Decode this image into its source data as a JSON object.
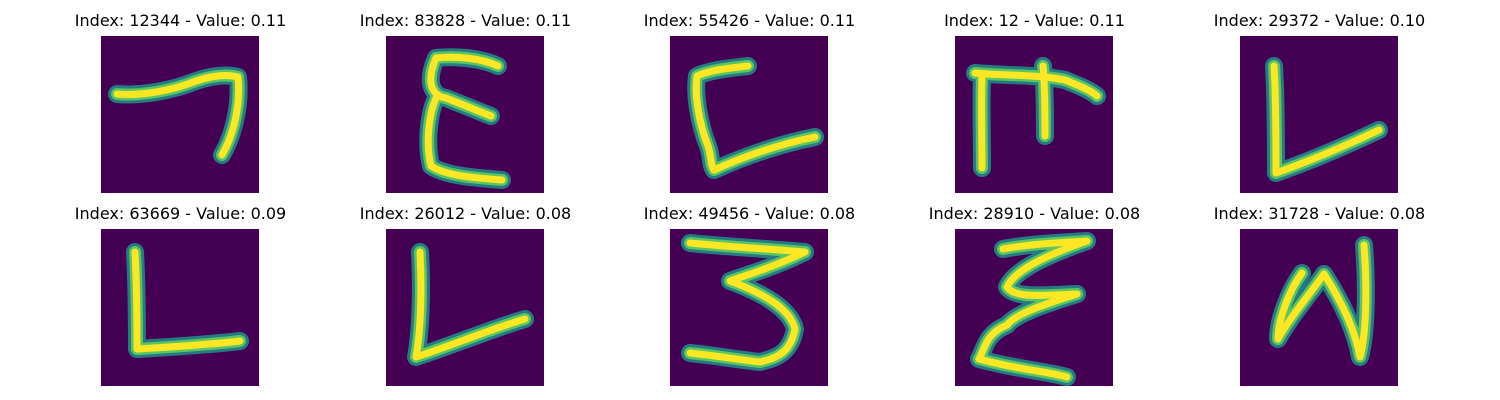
{
  "colors": {
    "background": "#440154",
    "stroke_outer": "#21918c",
    "stroke_mid": "#5ec962",
    "stroke_core": "#fde725"
  },
  "images": [
    {
      "title": "Index: 12344 - Value: 0.11",
      "glyph": "seven"
    },
    {
      "title": "Index: 83828 - Value: 0.11",
      "glyph": "epsilon"
    },
    {
      "title": "Index: 55426 - Value: 0.11",
      "glyph": "c-bracket"
    },
    {
      "title": "Index: 12 - Value: 0.11",
      "glyph": "pi-shape"
    },
    {
      "title": "Index: 29372 - Value: 0.10",
      "glyph": "l-slant"
    },
    {
      "title": "Index: 63669 - Value: 0.09",
      "glyph": "l-flat"
    },
    {
      "title": "Index: 26012 - Value: 0.08",
      "glyph": "l-slant-2"
    },
    {
      "title": "Index: 49456 - Value: 0.08",
      "glyph": "three"
    },
    {
      "title": "Index: 28910 - Value: 0.08",
      "glyph": "epsilon-2"
    },
    {
      "title": "Index: 31728 - Value: 0.08",
      "glyph": "n-shape"
    }
  ]
}
